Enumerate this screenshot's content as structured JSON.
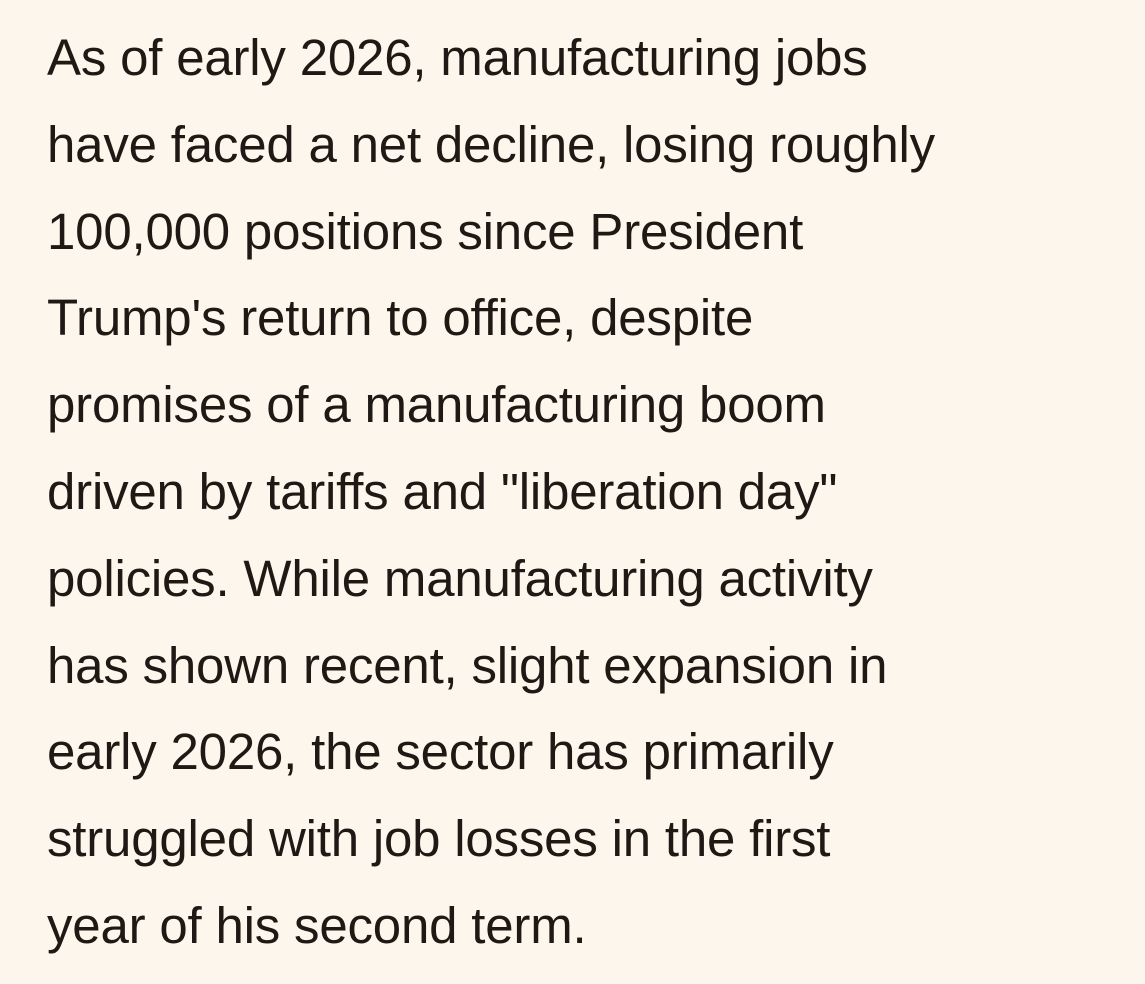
{
  "paragraph": {
    "lines": [
      "As of early 2026, manufacturing jobs",
      "have faced a net decline, losing roughly",
      "100,000 positions since President",
      "Trump's return to office, despite",
      "promises of a manufacturing boom",
      "driven by tariffs and \"liberation day\"",
      "policies. While manufacturing activity",
      "has shown recent, slight expansion in",
      "early 2026, the sector has primarily",
      "struggled with job losses in the first",
      "year of his second term."
    ]
  }
}
